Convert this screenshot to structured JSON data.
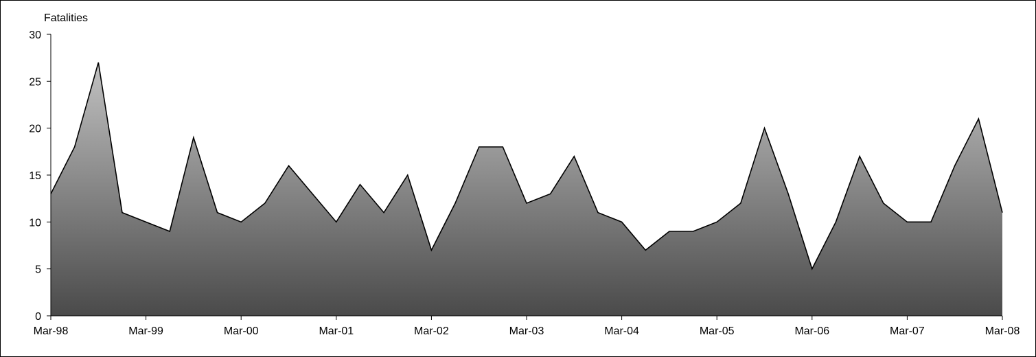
{
  "chart_data": {
    "type": "area",
    "ylabel": "Fatalities",
    "xlabel": "",
    "title": "",
    "ylim": [
      0,
      30
    ],
    "yticks": [
      0,
      5,
      10,
      15,
      20,
      25,
      30
    ],
    "x_ticks": [
      "Mar-98",
      "Mar-99",
      "Mar-00",
      "Mar-01",
      "Mar-02",
      "Mar-03",
      "Mar-04",
      "Mar-05",
      "Mar-06",
      "Mar-07",
      "Mar-08"
    ],
    "x": [
      "Mar-98",
      "Jun-98",
      "Sep-98",
      "Dec-98",
      "Mar-99",
      "Jun-99",
      "Sep-99",
      "Dec-99",
      "Mar-00",
      "Jun-00",
      "Sep-00",
      "Dec-00",
      "Mar-01",
      "Jun-01",
      "Sep-01",
      "Dec-01",
      "Mar-02",
      "Jun-02",
      "Sep-02",
      "Dec-02",
      "Mar-03",
      "Jun-03",
      "Sep-03",
      "Dec-03",
      "Mar-04",
      "Jun-04",
      "Sep-04",
      "Dec-04",
      "Mar-05",
      "Jun-05",
      "Sep-05",
      "Dec-05",
      "Mar-06",
      "Jun-06",
      "Sep-06",
      "Dec-06",
      "Mar-07",
      "Jun-07",
      "Sep-07",
      "Dec-07",
      "Mar-08"
    ],
    "values": [
      13,
      18,
      27,
      11,
      10,
      9,
      19,
      11,
      10,
      12,
      16,
      13,
      10,
      14,
      11,
      15,
      7,
      12,
      18,
      18,
      12,
      13,
      17,
      11,
      10,
      7,
      9,
      9,
      10,
      12,
      20,
      13,
      5,
      10,
      17,
      12,
      10,
      10,
      16,
      21,
      11
    ],
    "fill_top": "#c2c2c2",
    "fill_bottom": "#4a4a4a",
    "line_color": "#000000",
    "grid": false,
    "legend": "none"
  }
}
